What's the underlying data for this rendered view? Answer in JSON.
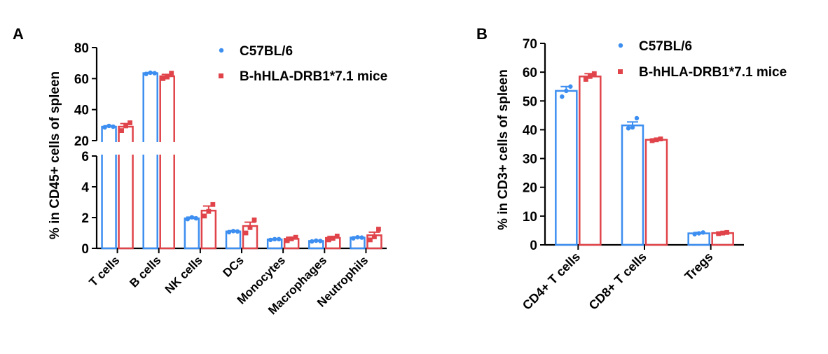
{
  "colors": {
    "series_a": "#3c8ef0",
    "series_b": "#e0444a",
    "axis": "#000000"
  },
  "chart_data": [
    {
      "panel_label": "A",
      "type": "bar",
      "ylabel": "% in CD45+ cells of spleen",
      "categories": [
        "T cells",
        "B cells",
        "NK cells",
        "DCs",
        "Monocytes",
        "Macrophages",
        "Neutrophils"
      ],
      "y_axis": {
        "broken": true,
        "lower_segment": {
          "range": [
            0,
            6
          ],
          "ticks": [
            "0",
            "2",
            "4",
            "6"
          ]
        },
        "upper_segment": {
          "range": [
            20,
            80
          ],
          "ticks": [
            "20",
            "40",
            "60",
            "80"
          ]
        }
      },
      "legend": {
        "position": "top-right",
        "entries": [
          "C57BL/6",
          "B-hHLA-DRB1*7.1 mice"
        ]
      },
      "series": [
        {
          "name": "C57BL/6",
          "marker": "circle",
          "values": [
            29,
            63.5,
            1.95,
            1.1,
            0.58,
            0.48,
            0.7
          ],
          "errors": [
            0.6,
            0.4,
            0.08,
            0.05,
            0.04,
            0.04,
            0.05
          ],
          "points": [
            [
              28.5,
              29.5,
              29
            ],
            [
              63,
              63.8,
              63.5
            ],
            [
              1.9,
              2.02,
              1.95
            ],
            [
              1.05,
              1.12,
              1.1
            ],
            [
              0.55,
              0.6,
              0.6
            ],
            [
              0.45,
              0.5,
              0.48
            ],
            [
              0.65,
              0.72,
              0.7
            ]
          ]
        },
        {
          "name": "B-hHLA-DRB1*7.1 mice",
          "marker": "square",
          "values": [
            29,
            61.5,
            2.45,
            1.45,
            0.62,
            0.68,
            0.85
          ],
          "errors": [
            2.0,
            1.2,
            0.3,
            0.25,
            0.1,
            0.1,
            0.2
          ],
          "points": [
            [
              26.5,
              29.5,
              31.5
            ],
            [
              60,
              61,
              63.5
            ],
            [
              2.1,
              2.4,
              2.85
            ],
            [
              1.0,
              1.35,
              1.85
            ],
            [
              0.5,
              0.62,
              0.72
            ],
            [
              0.55,
              0.65,
              0.8
            ],
            [
              0.55,
              0.75,
              1.25
            ]
          ]
        }
      ]
    },
    {
      "panel_label": "B",
      "type": "bar",
      "ylabel": "% in CD3+ cells of spleen",
      "categories": [
        "CD4+ T cells",
        "CD8+ T cells",
        "Tregs"
      ],
      "ylim": [
        0,
        70
      ],
      "y_ticks": [
        "0",
        "10",
        "20",
        "30",
        "40",
        "50",
        "60",
        "70"
      ],
      "legend": {
        "position": "top-right",
        "entries": [
          "C57BL/6",
          "B-hHLA-DRB1*7.1 mice"
        ]
      },
      "series": [
        {
          "name": "C57BL/6",
          "marker": "circle",
          "values": [
            53.5,
            41.5,
            4.0
          ],
          "errors": [
            1.5,
            1.2,
            0.3
          ],
          "points": [
            [
              51.5,
              53.5,
              55
            ],
            [
              40.5,
              40.8,
              44
            ],
            [
              3.7,
              4.0,
              4.3
            ]
          ]
        },
        {
          "name": "B-hHLA-DRB1*7.1 mice",
          "marker": "square",
          "values": [
            58.5,
            36.5,
            4.1
          ],
          "errors": [
            1.0,
            0.3,
            0.2
          ],
          "points": [
            [
              57.5,
              58.5,
              59.5
            ],
            [
              36.2,
              36.5,
              36.8
            ],
            [
              3.9,
              4.1,
              4.3
            ]
          ]
        }
      ]
    }
  ]
}
